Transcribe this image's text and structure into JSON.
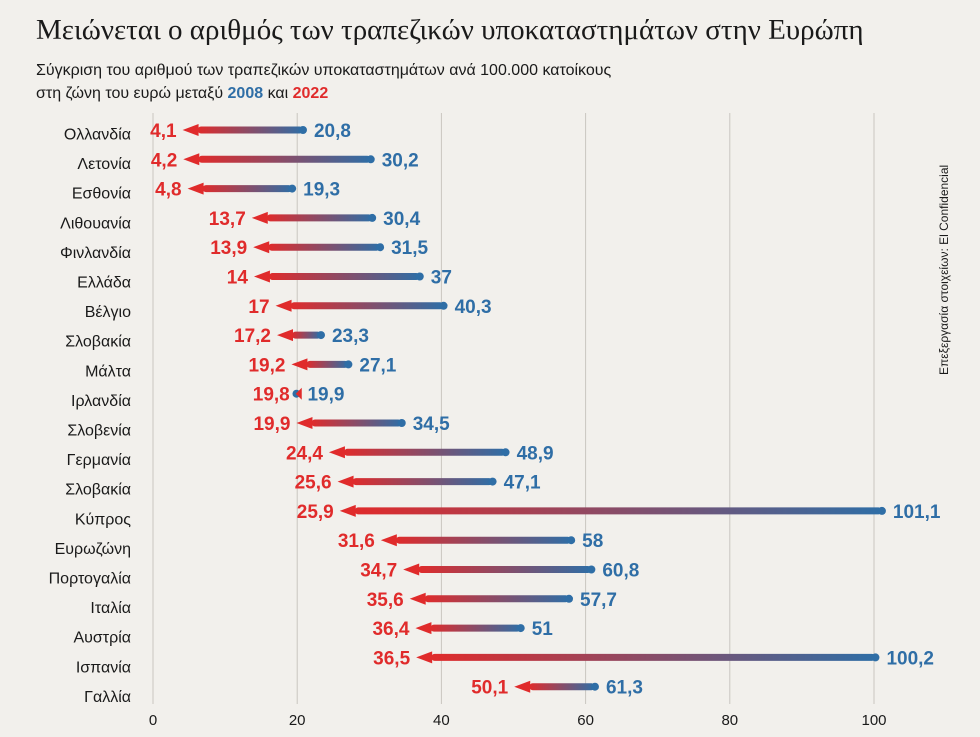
{
  "title": "Μειώνεται ο αριθμός των τραπεζικών υποκαταστημάτων στην Ευρώπη",
  "subtitle_line1": "Σύγκριση του αριθμού των τραπεζικών υποκαταστημάτων ανά 100.000 κατοίκους",
  "subtitle_line2_prefix": "στη ζώνη του ευρώ μεταξύ ",
  "subtitle_year1": "2008",
  "subtitle_and": " και ",
  "subtitle_year2": "2022",
  "source": "Επεξεργασία στοιχείων: El Confidencial",
  "colors": {
    "y2008": "#2f6ea6",
    "y2022": "#e02b2b",
    "grid": "#c9c6c0"
  },
  "chart_data": {
    "type": "dumbbell-arrow",
    "categories": [
      "Ολλανδία",
      "Λετονία",
      "Εσθονία",
      "Λιθουανία",
      "Φινλανδία",
      "Ελλάδα",
      "Βέλγιο",
      "Σλοβακία",
      "Μάλτα",
      "Ιρλανδία",
      "Σλοβενία",
      "Γερμανία",
      "Σλοβακία",
      "Κύπρος",
      "Ευρωζώνη",
      "Πορτογαλία",
      "Ιταλία",
      "Αυστρία",
      "Ισπανία",
      "Γαλλία"
    ],
    "series": [
      {
        "name": "2008",
        "values": [
          20.8,
          30.2,
          19.3,
          30.4,
          31.5,
          37,
          40.3,
          23.3,
          27.1,
          19.9,
          34.5,
          48.9,
          47.1,
          101.1,
          58,
          60.8,
          57.7,
          51,
          100.2,
          61.3
        ]
      },
      {
        "name": "2022",
        "values": [
          4.1,
          4.2,
          4.8,
          13.7,
          13.9,
          14,
          17,
          17.2,
          19.2,
          19.8,
          19.9,
          24.4,
          25.6,
          25.9,
          31.6,
          34.7,
          35.6,
          36.4,
          36.5,
          50.1
        ]
      }
    ],
    "labels_2008": [
      "20,8",
      "30,2",
      "19,3",
      "30,4",
      "31,5",
      "37",
      "40,3",
      "23,3",
      "27,1",
      "19,9",
      "34,5",
      "48,9",
      "47,1",
      "101,1",
      "58",
      "60,8",
      "57,7",
      "51",
      "100,2",
      "61,3"
    ],
    "labels_2022": [
      "4,1",
      "4,2",
      "4,8",
      "13,7",
      "13,9",
      "14",
      "17",
      "17,2",
      "19,2",
      "19,8",
      "19,9",
      "24,4",
      "25,6",
      "25,9",
      "31,6",
      "34,7",
      "35,6",
      "36,4",
      "36,5",
      "50,1"
    ],
    "xticks": [
      0,
      20,
      40,
      60,
      80,
      100
    ],
    "xlim": [
      0,
      110
    ],
    "grid": true
  }
}
